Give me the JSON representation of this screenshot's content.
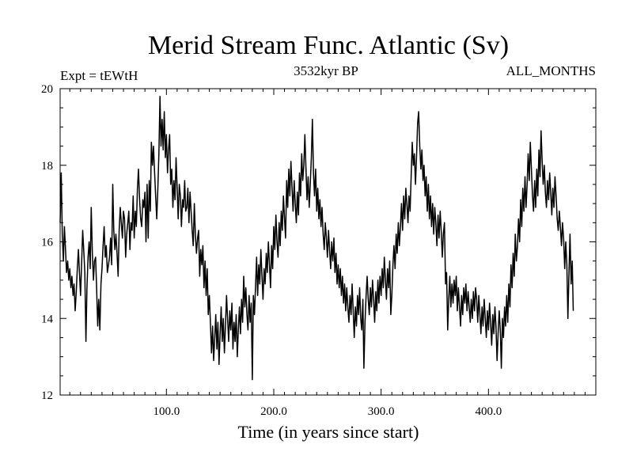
{
  "chart_data": {
    "type": "line",
    "title": "Merid Stream Func. Atlantic (Sv)",
    "left_label": "Expt = tEWtH",
    "center_label": "3532kyr BP",
    "right_label": "ALL_MONTHS",
    "xlabel": "Time (in years since start)",
    "ylabel": "",
    "xlim": [
      1,
      500
    ],
    "ylim": [
      12,
      20
    ],
    "x_ticks": [
      100,
      200,
      300,
      400
    ],
    "x_tick_labels": [
      "100.0",
      "200.0",
      "300.0",
      "400.0"
    ],
    "y_ticks": [
      12,
      14,
      16,
      18,
      20
    ],
    "y_tick_labels": [
      "12",
      "14",
      "16",
      "18",
      "20"
    ],
    "grid": false,
    "series": [
      {
        "name": "Merid Stream Func. Atlantic",
        "color": "#000000",
        "x_start": 1,
        "x_step": 1,
        "values": [
          16.5,
          17.8,
          16.2,
          15.5,
          16.4,
          15.8,
          15.2,
          15.5,
          15.0,
          15.3,
          14.8,
          15.1,
          14.6,
          14.9,
          14.2,
          14.7,
          15.3,
          15.8,
          15.2,
          14.6,
          15.4,
          16.3,
          15.8,
          15.2,
          13.4,
          14.8,
          15.6,
          16.0,
          15.3,
          16.9,
          15.7,
          15.0,
          15.5,
          15.6,
          14.8,
          13.8,
          14.5,
          13.7,
          14.9,
          15.3,
          15.9,
          16.4,
          15.6,
          15.9,
          15.2,
          15.4,
          15.6,
          16.1,
          15.4,
          17.5,
          16.3,
          15.8,
          16.2,
          15.7,
          15.1,
          16.3,
          16.9,
          16.5,
          16.1,
          16.8,
          16.6,
          15.6,
          16.2,
          16.5,
          16.8,
          15.8,
          16.5,
          16.3,
          17.2,
          16.1,
          16.8,
          16.4,
          17.4,
          17.9,
          17.1,
          16.6,
          16.4,
          17.1,
          16.9,
          17.3,
          16.0,
          17.5,
          16.1,
          17.6,
          16.8,
          18.6,
          18.0,
          18.5,
          17.8,
          17.2,
          16.6,
          17.4,
          18.3,
          19.8,
          18.5,
          19.2,
          18.4,
          19.4,
          18.2,
          18.8,
          17.8,
          18.4,
          18.8,
          17.5,
          17.9,
          16.9,
          17.6,
          17.1,
          18.2,
          17.4,
          16.6,
          17.5,
          17.2,
          16.4,
          17.1,
          16.9,
          17.6,
          16.8,
          16.9,
          17.4,
          16.5,
          17.3,
          16.8,
          16.3,
          15.9,
          17.0,
          16.2,
          15.7,
          16.1,
          16.3,
          15.1,
          15.8,
          15.4,
          15.9,
          14.8,
          15.5,
          14.6,
          15.3,
          14.1,
          14.6,
          13.9,
          13.1,
          13.8,
          12.9,
          13.5,
          14.1,
          13.2,
          13.9,
          12.8,
          13.6,
          14.3,
          13.4,
          14.0,
          13.1,
          13.8,
          14.6,
          14.0,
          13.4,
          14.2,
          13.7,
          14.4,
          13.2,
          13.9,
          13.4,
          14.1,
          13.0,
          13.7,
          14.3,
          13.6,
          14.5,
          13.9,
          15.1,
          14.3,
          14.8,
          14.1,
          13.7,
          14.6,
          13.9,
          14.4,
          12.4,
          14.6,
          14.1,
          14.8,
          15.6,
          14.6,
          15.4,
          14.9,
          15.8,
          15.1,
          14.5,
          15.3,
          14.9,
          15.7,
          15.2,
          16.0,
          15.4,
          14.8,
          15.9,
          15.3,
          16.4,
          15.8,
          16.7,
          16.0,
          15.6,
          16.5,
          15.9,
          16.8,
          16.3,
          17.2,
          16.6,
          16.1,
          17.6,
          16.9,
          17.9,
          17.2,
          18.1,
          17.4,
          16.8,
          17.6,
          17.0,
          16.5,
          17.3,
          16.7,
          17.8,
          17.2,
          18.3,
          17.6,
          18.0,
          18.8,
          17.9,
          17.1,
          17.7,
          16.9,
          17.5,
          18.2,
          19.2,
          17.8,
          17.2,
          17.9,
          16.8,
          17.4,
          16.6,
          17.1,
          16.4,
          16.9,
          16.2,
          15.8,
          16.5,
          16.1,
          15.6,
          16.3,
          15.8,
          15.3,
          16.0,
          15.5,
          16.1,
          15.2,
          15.7,
          14.9,
          15.4,
          14.8,
          15.3,
          14.6,
          15.1,
          14.4,
          14.9,
          14.2,
          14.8,
          14.3,
          13.9,
          14.6,
          14.1,
          14.9,
          14.2,
          13.5,
          14.3,
          13.8,
          14.6,
          14.1,
          14.8,
          14.0,
          13.7,
          14.5,
          12.7,
          13.9,
          14.6,
          15.1,
          14.5,
          14.1,
          14.8,
          14.3,
          15.0,
          14.5,
          13.9,
          14.7,
          14.2,
          15.0,
          14.4,
          15.1,
          14.6,
          15.3,
          14.8,
          15.6,
          15.0,
          14.5,
          15.3,
          14.8,
          15.5,
          14.1,
          14.6,
          15.4,
          15.9,
          15.3,
          16.2,
          15.7,
          16.5,
          15.9,
          16.4,
          17.0,
          16.3,
          17.2,
          16.6,
          17.4,
          17.0,
          16.5,
          17.2,
          16.8,
          17.7,
          18.6,
          18.0,
          18.3,
          17.5,
          18.2,
          19.1,
          19.4,
          18.5,
          17.9,
          18.4,
          17.6,
          18.0,
          17.2,
          17.7,
          16.8,
          17.5,
          16.6,
          17.2,
          16.4,
          17.0,
          16.2,
          16.9,
          16.5,
          15.9,
          16.7,
          16.1,
          16.8,
          16.3,
          15.6,
          16.2,
          16.5,
          14.9,
          15.2,
          13.7,
          14.5,
          15.1,
          14.3,
          14.9,
          14.4,
          15.0,
          14.6,
          15.1,
          14.2,
          14.8,
          14.3,
          13.8,
          14.6,
          14.1,
          14.8,
          14.4,
          14.9,
          14.2,
          14.7,
          14.3,
          13.9,
          14.5,
          14.0,
          14.7,
          14.2,
          14.8,
          14.5,
          13.9,
          14.6,
          14.1,
          13.6,
          14.3,
          13.8,
          14.5,
          14.0,
          13.5,
          14.2,
          13.7,
          14.4,
          13.9,
          13.3,
          14.1,
          13.6,
          14.3,
          13.8,
          12.9,
          13.6,
          14.2,
          13.7,
          12.7,
          14.0,
          13.5,
          14.3,
          13.8,
          14.6,
          13.9,
          14.9,
          14.3,
          15.4,
          14.8,
          15.7,
          15.1,
          16.2,
          15.5,
          15.9,
          16.6,
          16.0,
          17.1,
          16.4,
          17.4,
          16.8,
          17.7,
          16.9,
          17.5,
          18.3,
          17.6,
          18.6,
          17.9,
          17.2,
          16.8,
          17.6,
          16.9,
          17.9,
          17.2,
          18.4,
          17.7,
          18.9,
          18.1,
          17.5,
          18.0,
          17.3,
          16.9,
          17.6,
          17.1,
          17.8,
          17.3,
          16.7,
          17.4,
          16.9,
          17.7,
          17.2,
          16.6,
          16.3,
          16.8,
          16.4,
          15.9,
          16.5,
          16.1,
          15.3,
          16.0,
          15.4,
          14.0,
          15.2,
          16.2,
          14.9,
          15.5,
          14.2
        ]
      }
    ]
  }
}
